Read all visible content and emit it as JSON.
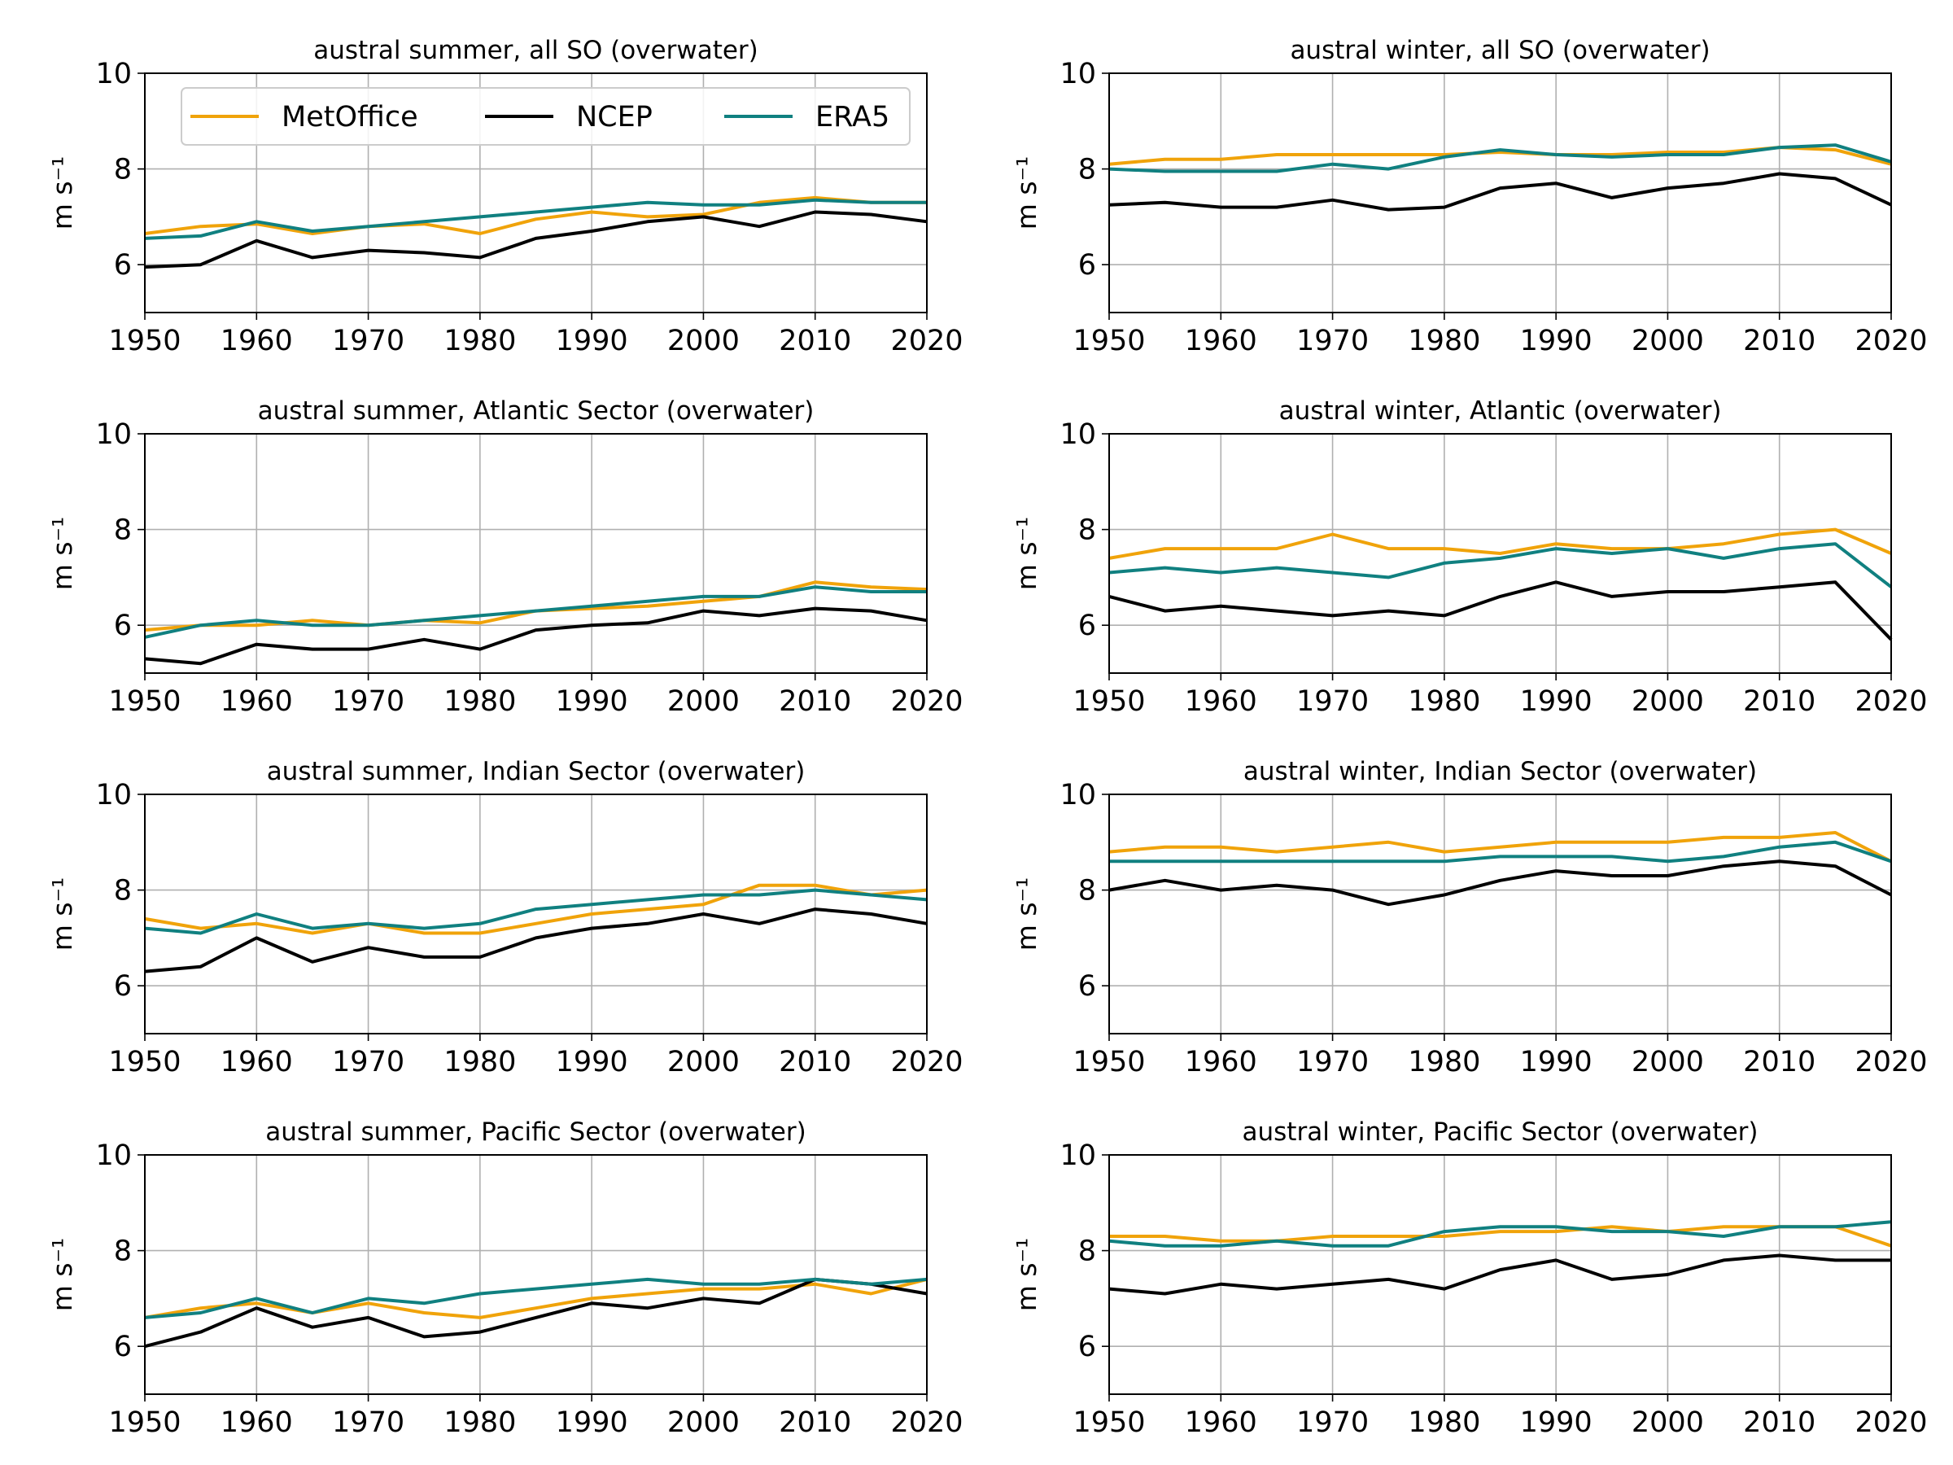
{
  "colors": {
    "MetOffice": "#f0a30a",
    "NCEP": "#000000",
    "ERA5": "#108080"
  },
  "legend": {
    "placement": "upper-left, first panel",
    "entries": [
      "MetOffice",
      "NCEP",
      "ERA5"
    ]
  },
  "chart_data": [
    {
      "type": "line",
      "title": "austral summer, all SO (overwater)",
      "ylabel": "m s⁻¹",
      "xlim": [
        1950,
        2020
      ],
      "ylim": [
        5,
        10
      ],
      "xticks": [
        1950,
        1960,
        1970,
        1980,
        1990,
        2000,
        2010,
        2020
      ],
      "yticks": [
        6,
        8,
        10
      ],
      "grid": true,
      "x": [
        1950,
        1955,
        1960,
        1965,
        1970,
        1975,
        1980,
        1985,
        1990,
        1995,
        2000,
        2005,
        2010,
        2015,
        2020
      ],
      "series": [
        {
          "name": "MetOffice",
          "values": [
            6.65,
            6.8,
            6.85,
            6.65,
            6.8,
            6.85,
            6.65,
            6.95,
            7.1,
            7.0,
            7.05,
            7.3,
            7.4,
            7.3,
            7.3
          ]
        },
        {
          "name": "NCEP",
          "values": [
            5.95,
            6.0,
            6.5,
            6.15,
            6.3,
            6.25,
            6.15,
            6.55,
            6.7,
            6.9,
            7.0,
            6.8,
            7.1,
            7.05,
            6.9
          ]
        },
        {
          "name": "ERA5",
          "values": [
            6.55,
            6.6,
            6.9,
            6.7,
            6.8,
            6.9,
            7.0,
            7.1,
            7.2,
            7.3,
            7.25,
            7.25,
            7.35,
            7.3,
            7.3
          ]
        }
      ]
    },
    {
      "type": "line",
      "title": "austral winter, all SO (overwater)",
      "ylabel": "m s⁻¹",
      "xlim": [
        1950,
        2020
      ],
      "ylim": [
        5,
        10
      ],
      "xticks": [
        1950,
        1960,
        1970,
        1980,
        1990,
        2000,
        2010,
        2020
      ],
      "yticks": [
        6,
        8,
        10
      ],
      "grid": true,
      "x": [
        1950,
        1955,
        1960,
        1965,
        1970,
        1975,
        1980,
        1985,
        1990,
        1995,
        2000,
        2005,
        2010,
        2015,
        2020
      ],
      "series": [
        {
          "name": "MetOffice",
          "values": [
            8.1,
            8.2,
            8.2,
            8.3,
            8.3,
            8.3,
            8.3,
            8.35,
            8.3,
            8.3,
            8.35,
            8.35,
            8.45,
            8.4,
            8.1
          ]
        },
        {
          "name": "NCEP",
          "values": [
            7.25,
            7.3,
            7.2,
            7.2,
            7.35,
            7.15,
            7.2,
            7.6,
            7.7,
            7.4,
            7.6,
            7.7,
            7.9,
            7.8,
            7.25
          ]
        },
        {
          "name": "ERA5",
          "values": [
            8.0,
            7.95,
            7.95,
            7.95,
            8.1,
            8.0,
            8.25,
            8.4,
            8.3,
            8.25,
            8.3,
            8.3,
            8.45,
            8.5,
            8.15
          ]
        }
      ]
    },
    {
      "type": "line",
      "title": "austral summer,  Atlantic Sector (overwater)",
      "ylabel": "m s⁻¹",
      "xlim": [
        1950,
        2020
      ],
      "ylim": [
        5,
        10
      ],
      "xticks": [
        1950,
        1960,
        1970,
        1980,
        1990,
        2000,
        2010,
        2020
      ],
      "yticks": [
        6,
        8,
        10
      ],
      "grid": true,
      "x": [
        1950,
        1955,
        1960,
        1965,
        1970,
        1975,
        1980,
        1985,
        1990,
        1995,
        2000,
        2005,
        2010,
        2015,
        2020
      ],
      "series": [
        {
          "name": "MetOffice",
          "values": [
            5.9,
            6.0,
            6.0,
            6.1,
            6.0,
            6.1,
            6.05,
            6.3,
            6.35,
            6.4,
            6.5,
            6.6,
            6.9,
            6.8,
            6.75
          ]
        },
        {
          "name": "NCEP",
          "values": [
            5.3,
            5.2,
            5.6,
            5.5,
            5.5,
            5.7,
            5.5,
            5.9,
            6.0,
            6.05,
            6.3,
            6.2,
            6.35,
            6.3,
            6.1
          ]
        },
        {
          "name": "ERA5",
          "values": [
            5.75,
            6.0,
            6.1,
            6.0,
            6.0,
            6.1,
            6.2,
            6.3,
            6.4,
            6.5,
            6.6,
            6.6,
            6.8,
            6.7,
            6.7
          ]
        }
      ]
    },
    {
      "type": "line",
      "title": "austral winter, Atlantic (overwater)",
      "ylabel": "m s⁻¹",
      "xlim": [
        1950,
        2020
      ],
      "ylim": [
        5,
        10
      ],
      "xticks": [
        1950,
        1960,
        1970,
        1980,
        1990,
        2000,
        2010,
        2020
      ],
      "yticks": [
        6,
        8,
        10
      ],
      "grid": true,
      "x": [
        1950,
        1955,
        1960,
        1965,
        1970,
        1975,
        1980,
        1985,
        1990,
        1995,
        2000,
        2005,
        2010,
        2015,
        2020
      ],
      "series": [
        {
          "name": "MetOffice",
          "values": [
            7.4,
            7.6,
            7.6,
            7.6,
            7.9,
            7.6,
            7.6,
            7.5,
            7.7,
            7.6,
            7.6,
            7.7,
            7.9,
            8.0,
            7.5
          ]
        },
        {
          "name": "NCEP",
          "values": [
            6.6,
            6.3,
            6.4,
            6.3,
            6.2,
            6.3,
            6.2,
            6.6,
            6.9,
            6.6,
            6.7,
            6.7,
            6.8,
            6.9,
            5.7
          ]
        },
        {
          "name": "ERA5",
          "values": [
            7.1,
            7.2,
            7.1,
            7.2,
            7.1,
            7.0,
            7.3,
            7.4,
            7.6,
            7.5,
            7.6,
            7.4,
            7.6,
            7.7,
            6.8
          ]
        }
      ]
    },
    {
      "type": "line",
      "title": "austral summer, Indian Sector (overwater)",
      "ylabel": "m s⁻¹",
      "xlim": [
        1950,
        2020
      ],
      "ylim": [
        5,
        10
      ],
      "xticks": [
        1950,
        1960,
        1970,
        1980,
        1990,
        2000,
        2010,
        2020
      ],
      "yticks": [
        6,
        8,
        10
      ],
      "grid": true,
      "x": [
        1950,
        1955,
        1960,
        1965,
        1970,
        1975,
        1980,
        1985,
        1990,
        1995,
        2000,
        2005,
        2010,
        2015,
        2020
      ],
      "series": [
        {
          "name": "MetOffice",
          "values": [
            7.4,
            7.2,
            7.3,
            7.1,
            7.3,
            7.1,
            7.1,
            7.3,
            7.5,
            7.6,
            7.7,
            8.1,
            8.1,
            7.9,
            8.0
          ]
        },
        {
          "name": "NCEP",
          "values": [
            6.3,
            6.4,
            7.0,
            6.5,
            6.8,
            6.6,
            6.6,
            7.0,
            7.2,
            7.3,
            7.5,
            7.3,
            7.6,
            7.5,
            7.3
          ]
        },
        {
          "name": "ERA5",
          "values": [
            7.2,
            7.1,
            7.5,
            7.2,
            7.3,
            7.2,
            7.3,
            7.6,
            7.7,
            7.8,
            7.9,
            7.9,
            8.0,
            7.9,
            7.8
          ]
        }
      ]
    },
    {
      "type": "line",
      "title": "austral winter, Indian Sector (overwater)",
      "ylabel": "m s⁻¹",
      "xlim": [
        1950,
        2020
      ],
      "ylim": [
        5,
        10
      ],
      "xticks": [
        1950,
        1960,
        1970,
        1980,
        1990,
        2000,
        2010,
        2020
      ],
      "yticks": [
        6,
        8,
        10
      ],
      "grid": true,
      "x": [
        1950,
        1955,
        1960,
        1965,
        1970,
        1975,
        1980,
        1985,
        1990,
        1995,
        2000,
        2005,
        2010,
        2015,
        2020
      ],
      "series": [
        {
          "name": "MetOffice",
          "values": [
            8.8,
            8.9,
            8.9,
            8.8,
            8.9,
            9.0,
            8.8,
            8.9,
            9.0,
            9.0,
            9.0,
            9.1,
            9.1,
            9.2,
            8.6
          ]
        },
        {
          "name": "NCEP",
          "values": [
            8.0,
            8.2,
            8.0,
            8.1,
            8.0,
            7.7,
            7.9,
            8.2,
            8.4,
            8.3,
            8.3,
            8.5,
            8.6,
            8.5,
            7.9
          ]
        },
        {
          "name": "ERA5",
          "values": [
            8.6,
            8.6,
            8.6,
            8.6,
            8.6,
            8.6,
            8.6,
            8.7,
            8.7,
            8.7,
            8.6,
            8.7,
            8.9,
            9.0,
            8.6
          ]
        }
      ]
    },
    {
      "type": "line",
      "title": "austral summer, Pacific Sector  (overwater)",
      "ylabel": "m s⁻¹",
      "xlim": [
        1950,
        2020
      ],
      "ylim": [
        5,
        10
      ],
      "xticks": [
        1950,
        1960,
        1970,
        1980,
        1990,
        2000,
        2010,
        2020
      ],
      "yticks": [
        6,
        8,
        10
      ],
      "grid": true,
      "x": [
        1950,
        1955,
        1960,
        1965,
        1970,
        1975,
        1980,
        1985,
        1990,
        1995,
        2000,
        2005,
        2010,
        2015,
        2020
      ],
      "series": [
        {
          "name": "MetOffice",
          "values": [
            6.6,
            6.8,
            6.9,
            6.7,
            6.9,
            6.7,
            6.6,
            6.8,
            7.0,
            7.1,
            7.2,
            7.2,
            7.3,
            7.1,
            7.4
          ]
        },
        {
          "name": "NCEP",
          "values": [
            6.0,
            6.3,
            6.8,
            6.4,
            6.6,
            6.2,
            6.3,
            6.6,
            6.9,
            6.8,
            7.0,
            6.9,
            7.4,
            7.3,
            7.1
          ]
        },
        {
          "name": "ERA5",
          "values": [
            6.6,
            6.7,
            7.0,
            6.7,
            7.0,
            6.9,
            7.1,
            7.2,
            7.3,
            7.4,
            7.3,
            7.3,
            7.4,
            7.3,
            7.4
          ]
        }
      ]
    },
    {
      "type": "line",
      "title": "austral winter, Pacific Sector (overwater)",
      "ylabel": "m s⁻¹",
      "xlim": [
        1950,
        2020
      ],
      "ylim": [
        5,
        10
      ],
      "xticks": [
        1950,
        1960,
        1970,
        1980,
        1990,
        2000,
        2010,
        2020
      ],
      "yticks": [
        6,
        8,
        10
      ],
      "grid": true,
      "x": [
        1950,
        1955,
        1960,
        1965,
        1970,
        1975,
        1980,
        1985,
        1990,
        1995,
        2000,
        2005,
        2010,
        2015,
        2020
      ],
      "series": [
        {
          "name": "MetOffice",
          "values": [
            8.3,
            8.3,
            8.2,
            8.2,
            8.3,
            8.3,
            8.3,
            8.4,
            8.4,
            8.5,
            8.4,
            8.5,
            8.5,
            8.5,
            8.1
          ]
        },
        {
          "name": "NCEP",
          "values": [
            7.2,
            7.1,
            7.3,
            7.2,
            7.3,
            7.4,
            7.2,
            7.6,
            7.8,
            7.4,
            7.5,
            7.8,
            7.9,
            7.8,
            7.8
          ]
        },
        {
          "name": "ERA5",
          "values": [
            8.2,
            8.1,
            8.1,
            8.2,
            8.1,
            8.1,
            8.4,
            8.5,
            8.5,
            8.4,
            8.4,
            8.3,
            8.5,
            8.5,
            8.6
          ]
        }
      ]
    }
  ]
}
